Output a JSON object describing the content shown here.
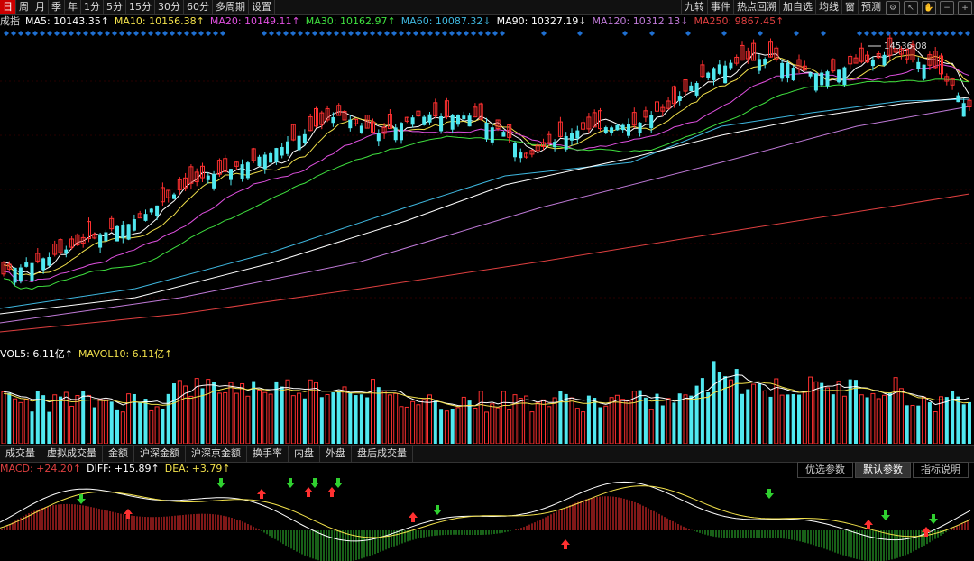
{
  "period_bar": {
    "items": [
      "日",
      "周",
      "月",
      "季",
      "年",
      "1分",
      "5分",
      "15分",
      "30分",
      "60分",
      "多周期",
      "设置"
    ],
    "active_index": 0
  },
  "tools_bar": {
    "items": [
      "九转",
      "事件",
      "热点回溯",
      "加自选",
      "均线",
      "窗",
      "预测"
    ]
  },
  "ma_legend": [
    {
      "text": "成指",
      "color": "#cccccc"
    },
    {
      "text": "MA5: 10143.35↑",
      "color": "#ffffff"
    },
    {
      "text": "MA10: 10156.38↑",
      "color": "#f2e14b"
    },
    {
      "text": "MA20: 10149.11↑",
      "color": "#e050e0"
    },
    {
      "text": "MA30: 10162.97↑",
      "color": "#3fe03f"
    },
    {
      "text": "MA60: 10087.32↓",
      "color": "#3fb8e0"
    },
    {
      "text": "MA90: 10327.19↓",
      "color": "#ffffff"
    },
    {
      "text": "MA120: 10312.13↓",
      "color": "#c07ad8"
    },
    {
      "text": "MA250: 9867.45↑",
      "color": "#e04040"
    }
  ],
  "price_high_label": "14536.08",
  "vol_legend": [
    {
      "text": "VOL5: 6.11亿↑",
      "color": "#ffffff"
    },
    {
      "text": "MAVOL10: 6.11亿↑",
      "color": "#f2e14b"
    }
  ],
  "indicator_tabs": [
    "成交量",
    "虚拟成交量",
    "金额",
    "沪深金额",
    "沪深京金额",
    "换手率",
    "内盘",
    "外盘",
    "盘后成交量"
  ],
  "macd_legend": [
    {
      "text": "MACD: +24.20↑",
      "color": "#e04040"
    },
    {
      "text": "DIFF: +15.89↑",
      "color": "#ffffff"
    },
    {
      "text": "DEA: +3.79↑",
      "color": "#f2e14b"
    }
  ],
  "macd_buttons": [
    "优选参数",
    "默认参数",
    "指标说明"
  ],
  "macd_selected": 1,
  "colors": {
    "up": "#ff3030",
    "down": "#50e8f0",
    "ma5": "#ffffff",
    "ma10": "#f2e14b",
    "ma20": "#e050e0",
    "ma30": "#3fe03f",
    "ma60": "#3fb8e0",
    "ma90": "#ffffff",
    "ma120": "#c07ad8",
    "ma250": "#e04040",
    "signal_blue": "#1f6fd0"
  }
}
